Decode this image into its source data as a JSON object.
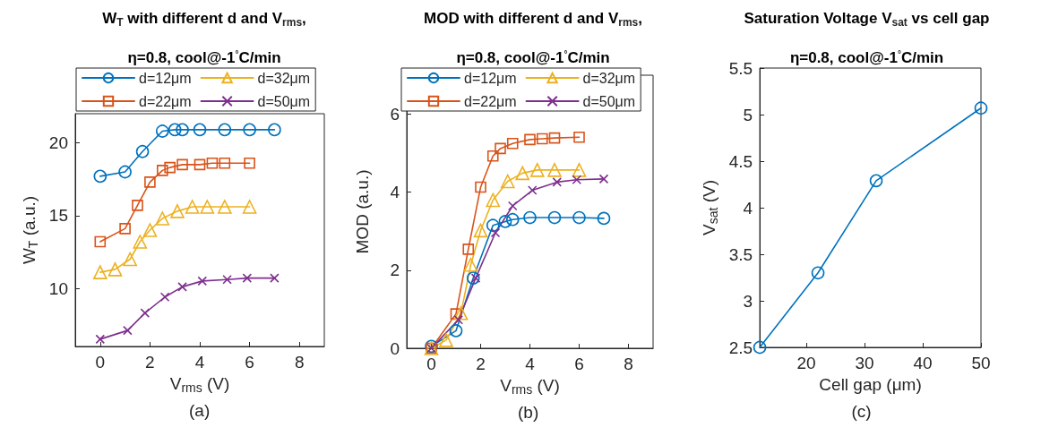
{
  "chart_data": [
    {
      "type": "line",
      "title": "W$_{T}$ with different d and V$_{rms}$,",
      "subtitle": "η=0.8, cool@-1$^{°}$C/min",
      "xlabel": "V$_{rms}$ (V)",
      "ylabel": "W$_{T}$ (a.u.)",
      "annotations": [
        "(a)"
      ],
      "xlim": [
        -1,
        9
      ],
      "xticks": [
        0,
        2,
        4,
        6,
        8
      ],
      "ylim": [
        6,
        22
      ],
      "yticks": [
        10,
        15,
        20
      ],
      "legend": "top",
      "series": [
        {
          "name": "d=12μm",
          "color": "#0072bd",
          "marker": "circle",
          "x": [
            0,
            1,
            1.7,
            2.5,
            3,
            3.3,
            4,
            5,
            6,
            7
          ],
          "values": [
            17.7,
            18.0,
            19.4,
            20.8,
            20.9,
            20.9,
            20.9,
            20.9,
            20.9,
            20.9
          ]
        },
        {
          "name": "d=22μm",
          "color": "#d95319",
          "marker": "square",
          "x": [
            0,
            1,
            1.5,
            2,
            2.5,
            2.8,
            3.3,
            4,
            4.5,
            5,
            6
          ],
          "values": [
            13.2,
            14.1,
            15.7,
            17.3,
            18.1,
            18.3,
            18.5,
            18.5,
            18.6,
            18.6,
            18.6
          ]
        },
        {
          "name": "d=32μm",
          "color": "#edb120",
          "marker": "triangle",
          "x": [
            0,
            0.6,
            1.2,
            1.6,
            2,
            2.5,
            3.1,
            3.7,
            4.3,
            5,
            6
          ],
          "values": [
            11.1,
            11.3,
            12.0,
            13.2,
            14.0,
            14.8,
            15.3,
            15.6,
            15.6,
            15.6,
            15.6
          ]
        },
        {
          "name": "d=50μm",
          "color": "#7e2f8e",
          "marker": "cross",
          "x": [
            0,
            1.1,
            1.8,
            2.6,
            3.3,
            4.1,
            5.1,
            5.9,
            7
          ],
          "values": [
            6.5,
            7.1,
            8.3,
            9.4,
            10.1,
            10.5,
            10.6,
            10.7,
            10.7
          ]
        }
      ]
    },
    {
      "type": "line",
      "title": "MOD with different d and V$_{rms}$,",
      "subtitle": "η=0.8, cool@-1$^{°}$C/min",
      "xlabel": "V$_{rms}$ (V)",
      "ylabel": "MOD (a.u.)",
      "annotations": [
        "(b)"
      ],
      "xlim": [
        -1,
        9
      ],
      "xticks": [
        0,
        2,
        4,
        6,
        8
      ],
      "ylim": [
        0,
        7
      ],
      "yticks": [
        0,
        2,
        4,
        6
      ],
      "legend": "top",
      "series": [
        {
          "name": "d=12μm",
          "color": "#0072bd",
          "marker": "circle",
          "x": [
            0,
            1,
            1.7,
            2.5,
            3,
            3.3,
            4,
            5,
            6,
            7
          ],
          "values": [
            0.05,
            0.45,
            1.8,
            3.15,
            3.25,
            3.3,
            3.35,
            3.35,
            3.35,
            3.33
          ]
        },
        {
          "name": "d=22μm",
          "color": "#d95319",
          "marker": "square",
          "x": [
            0,
            1,
            1.5,
            2,
            2.5,
            2.8,
            3.3,
            4,
            4.5,
            5,
            6
          ],
          "values": [
            0,
            0.88,
            2.54,
            4.13,
            4.93,
            5.12,
            5.25,
            5.35,
            5.37,
            5.39,
            5.41
          ]
        },
        {
          "name": "d=32μm",
          "color": "#edb120",
          "marker": "triangle",
          "x": [
            0,
            0.6,
            1.2,
            1.6,
            2,
            2.5,
            3.1,
            3.7,
            4.3,
            5,
            6
          ],
          "values": [
            0,
            0.21,
            0.9,
            2.14,
            3.02,
            3.8,
            4.28,
            4.49,
            4.57,
            4.57,
            4.57
          ]
        },
        {
          "name": "d=50μm",
          "color": "#7e2f8e",
          "marker": "cross",
          "x": [
            0,
            1.1,
            1.8,
            2.6,
            3.3,
            4.1,
            5.1,
            5.9,
            7
          ],
          "values": [
            0,
            0.73,
            1.8,
            2.96,
            3.65,
            4.05,
            4.26,
            4.32,
            4.34
          ]
        }
      ]
    },
    {
      "type": "line",
      "title": "Saturation Voltage V$_{sat}$ vs cell gap",
      "subtitle": "η=0.8, cool@-1$^{°}$C/min",
      "xlabel": "Cell gap (μm)",
      "ylabel": "V$_{sat}$ (V)",
      "annotations": [
        "(c)"
      ],
      "xlim": [
        12,
        50
      ],
      "xticks": [
        20,
        30,
        40,
        50
      ],
      "ylim": [
        2.5,
        5.5
      ],
      "yticks": [
        2.5,
        3,
        3.5,
        4,
        4.5,
        5,
        5.5
      ],
      "series": [
        {
          "color": "#0072bd",
          "marker": "circle",
          "x": [
            12,
            22,
            32,
            50
          ],
          "values": [
            2.5,
            3.3,
            4.29,
            5.07
          ]
        }
      ]
    }
  ]
}
